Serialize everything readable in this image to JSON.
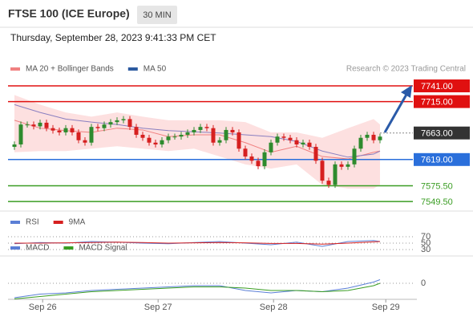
{
  "header": {
    "title": "FTSE 100 (ICE Europe)",
    "interval": "30 MIN",
    "datetime": "Thursday, September 28, 2023 9:41:33 PM CET",
    "credit": "Research © 2023 Trading Central"
  },
  "chart_data": [
    {
      "type": "candlestick",
      "x": [
        0,
        1,
        2,
        3,
        4,
        5,
        6,
        7,
        8,
        9,
        10,
        11,
        12,
        13,
        14,
        15,
        16,
        17,
        18,
        19,
        20,
        21,
        22,
        23,
        24,
        25,
        26,
        27,
        28,
        29,
        30,
        31,
        32,
        33,
        34,
        35,
        36,
        37,
        38,
        39,
        40,
        41,
        42,
        43,
        44,
        45,
        46,
        47,
        48,
        49,
        50,
        51,
        52,
        53,
        54,
        55,
        56,
        57
      ],
      "open": [
        7640,
        7644,
        7677,
        7677,
        7674,
        7680,
        7671,
        7667,
        7664,
        7671,
        7664,
        7651,
        7647,
        7673,
        7671,
        7677,
        7681,
        7684,
        7686,
        7673,
        7660,
        7655,
        7647,
        7644,
        7651,
        7657,
        7657,
        7660,
        7664,
        7668,
        7673,
        7671,
        7647,
        7651,
        7668,
        7664,
        7637,
        7624,
        7617,
        7608,
        7631,
        7647,
        7657,
        7655,
        7651,
        7644,
        7647,
        7640,
        7617,
        7584,
        7577,
        7611,
        7607,
        7611,
        7637,
        7655,
        7660,
        7651
      ],
      "high": [
        7649,
        7682,
        7682,
        7682,
        7685,
        7685,
        7676,
        7672,
        7676,
        7676,
        7669,
        7656,
        7678,
        7678,
        7682,
        7686,
        7689,
        7691,
        7691,
        7678,
        7665,
        7660,
        7652,
        7656,
        7662,
        7662,
        7665,
        7669,
        7673,
        7678,
        7678,
        7676,
        7656,
        7673,
        7673,
        7669,
        7642,
        7629,
        7622,
        7636,
        7652,
        7662,
        7662,
        7660,
        7656,
        7652,
        7652,
        7645,
        7622,
        7589,
        7616,
        7616,
        7616,
        7642,
        7660,
        7665,
        7665,
        7662
      ],
      "low": [
        7635,
        7639,
        7672,
        7669,
        7669,
        7666,
        7662,
        7659,
        7659,
        7659,
        7646,
        7642,
        7642,
        7666,
        7666,
        7672,
        7676,
        7679,
        7668,
        7655,
        7650,
        7642,
        7639,
        7639,
        7646,
        7652,
        7652,
        7655,
        7659,
        7663,
        7666,
        7642,
        7642,
        7646,
        7659,
        7632,
        7619,
        7612,
        7603,
        7603,
        7626,
        7642,
        7650,
        7646,
        7639,
        7639,
        7635,
        7612,
        7579,
        7572,
        7572,
        7602,
        7602,
        7606,
        7632,
        7650,
        7646,
        7646
      ],
      "close": [
        7644,
        7677,
        7677,
        7674,
        7680,
        7671,
        7667,
        7664,
        7671,
        7664,
        7651,
        7647,
        7673,
        7671,
        7677,
        7681,
        7684,
        7686,
        7673,
        7660,
        7655,
        7647,
        7644,
        7651,
        7657,
        7657,
        7660,
        7664,
        7668,
        7673,
        7671,
        7647,
        7651,
        7668,
        7664,
        7637,
        7624,
        7617,
        7608,
        7631,
        7647,
        7657,
        7655,
        7651,
        7644,
        7647,
        7640,
        7617,
        7584,
        7577,
        7611,
        7607,
        7611,
        7637,
        7655,
        7660,
        7651,
        7657
      ],
      "up_color": "#2e8b2e",
      "down_color": "#d62020",
      "xlim": [
        -1,
        59
      ],
      "ylim": [
        7535,
        7757
      ],
      "series": [
        {
          "name": "MA 20 + Bollinger Bands",
          "color": "#f08080",
          "band_color": "#fde0e0",
          "x": [
            0,
            4,
            8,
            12,
            16,
            20,
            24,
            28,
            32,
            36,
            40,
            44,
            48,
            52,
            56,
            57
          ],
          "values": [
            7684,
            7671,
            7667,
            7664,
            7671,
            7668,
            7657,
            7660,
            7660,
            7647,
            7631,
            7641,
            7624,
            7620,
            7631,
            7633
          ],
          "upper": [
            7726,
            7710,
            7697,
            7690,
            7697,
            7690,
            7684,
            7684,
            7684,
            7681,
            7664,
            7664,
            7655,
            7671,
            7686,
            7677
          ],
          "lower": [
            7631,
            7633,
            7633,
            7637,
            7641,
            7637,
            7633,
            7637,
            7624,
            7611,
            7604,
            7611,
            7577,
            7571,
            7571,
            7577
          ]
        },
        {
          "name": "MA 50",
          "color": "#2c5aa0",
          "line_color": "#8a7fc0",
          "x": [
            0,
            4,
            8,
            12,
            16,
            20,
            24,
            28,
            32,
            36,
            40,
            44,
            48,
            52,
            56,
            57
          ],
          "values": [
            7710,
            7697,
            7686,
            7681,
            7677,
            7671,
            7667,
            7665,
            7663,
            7660,
            7657,
            7649,
            7633,
            7623,
            7628,
            7633
          ]
        }
      ],
      "levels": [
        {
          "value": 7741,
          "label": "7741.00",
          "color": "#e01010",
          "label_box": true
        },
        {
          "value": 7715,
          "label": "7715.00",
          "color": "#e01010",
          "label_box": true
        },
        {
          "value": 7663,
          "label": "7663.00",
          "color": "#333333",
          "label_box": true,
          "dash": true
        },
        {
          "value": 7619,
          "label": "7619.00",
          "color": "#2a6fdb",
          "label_box": true
        },
        {
          "value": 7575.5,
          "label": "7575.50",
          "color": "#3a9d23",
          "label_box": false
        },
        {
          "value": 7549.5,
          "label": "7549.50",
          "color": "#3a9d23",
          "label_box": false
        }
      ]
    },
    {
      "type": "line",
      "xlim": [
        -1,
        59
      ],
      "ylim": [
        20,
        80
      ],
      "yticks": [
        70,
        50,
        30
      ],
      "series": [
        {
          "name": "RSI",
          "color": "#5b7fd6",
          "x": [
            0,
            4,
            8,
            12,
            16,
            20,
            24,
            28,
            32,
            36,
            40,
            44,
            48,
            52,
            56,
            57
          ],
          "values": [
            48,
            52,
            50,
            55,
            53,
            50,
            48,
            52,
            55,
            50,
            45,
            53,
            40,
            55,
            58,
            55
          ]
        },
        {
          "name": "9MA",
          "color": "#d62020",
          "x": [
            0,
            4,
            8,
            12,
            16,
            20,
            24,
            28,
            32,
            36,
            40,
            44,
            48,
            52,
            56,
            57
          ],
          "values": [
            50,
            50,
            51,
            52,
            53,
            52,
            50,
            51,
            52,
            51,
            49,
            49,
            47,
            50,
            54,
            55
          ]
        }
      ]
    },
    {
      "type": "line",
      "xlim": [
        -1,
        59
      ],
      "ylim": [
        -20,
        20
      ],
      "yticks": [
        0
      ],
      "xticks": [
        {
          "value": 4.4,
          "label": "Sep 26"
        },
        {
          "value": 22.4,
          "label": "Sep 27"
        },
        {
          "value": 40.4,
          "label": "Sep 28"
        },
        {
          "value": 57.9,
          "label": "Sep 29"
        }
      ],
      "series": [
        {
          "name": "MACD",
          "color": "#5b7fd6",
          "x": [
            0,
            4,
            8,
            12,
            16,
            20,
            24,
            28,
            32,
            36,
            40,
            44,
            48,
            52,
            56,
            57
          ],
          "values": [
            -12,
            -9,
            -8,
            -6,
            -5,
            -4,
            -3,
            -2,
            -2,
            -6,
            -8,
            -6,
            -7,
            -4,
            1,
            3
          ]
        },
        {
          "name": "MACD Signal",
          "color": "#3a9d23",
          "x": [
            0,
            4,
            8,
            12,
            16,
            20,
            24,
            28,
            32,
            36,
            40,
            44,
            48,
            52,
            56,
            57
          ],
          "values": [
            -13,
            -11,
            -9,
            -7,
            -6,
            -5,
            -4,
            -3,
            -3,
            -4,
            -6,
            -6,
            -7,
            -6,
            -2,
            0
          ]
        }
      ]
    }
  ]
}
